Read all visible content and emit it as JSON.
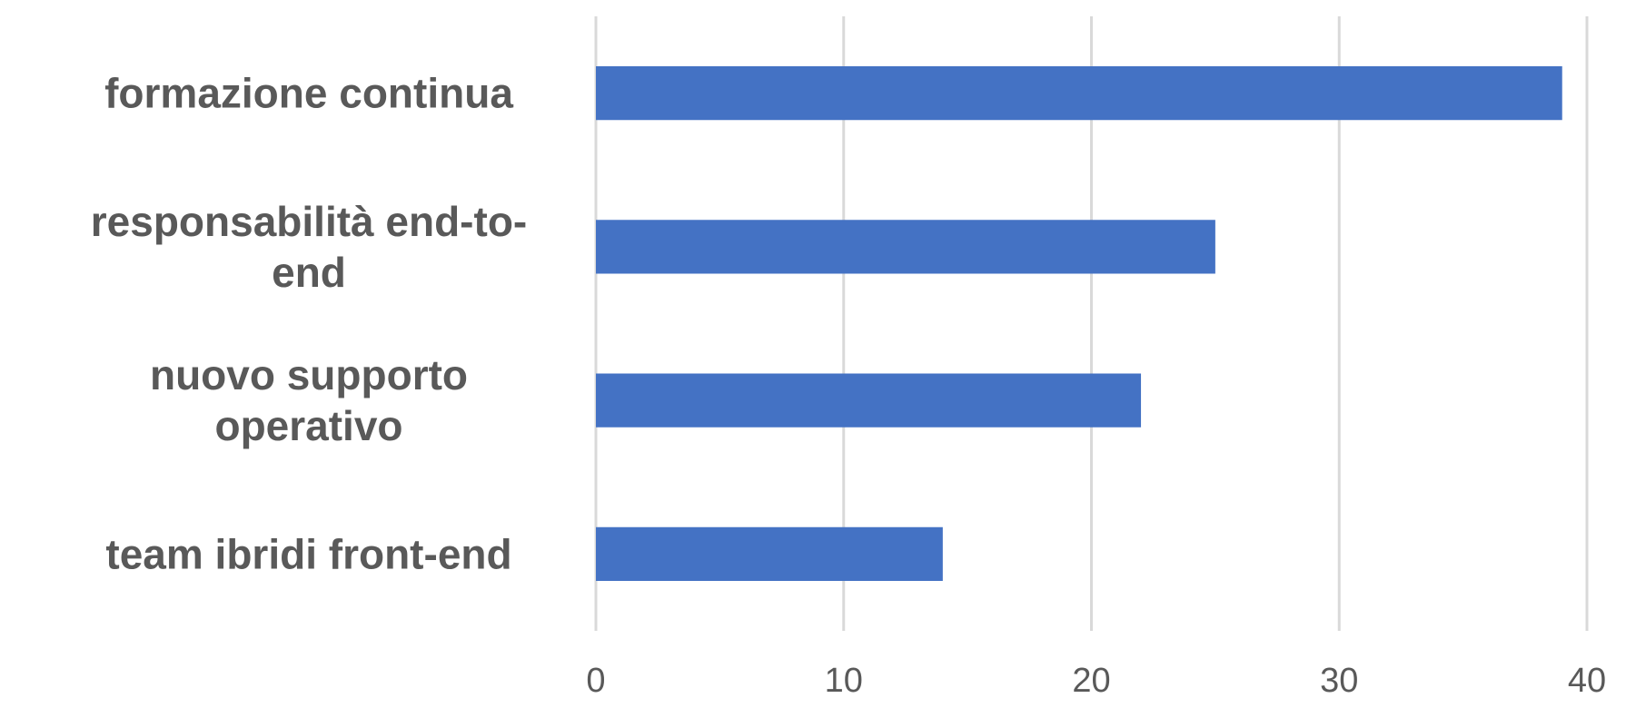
{
  "chart_data": {
    "type": "bar",
    "orientation": "horizontal",
    "title": "",
    "categories": [
      [
        "formazione continua"
      ],
      [
        "responsabilità end-to-",
        "end"
      ],
      [
        "nuovo supporto",
        "operativo"
      ],
      [
        "team ibridi front-end"
      ]
    ],
    "values": [
      39,
      25,
      22,
      14
    ],
    "xlim": [
      0,
      40
    ],
    "xticks": [
      "0",
      "10",
      "20",
      "30",
      "40"
    ],
    "grid": true,
    "bar_color": "#4472c4"
  }
}
